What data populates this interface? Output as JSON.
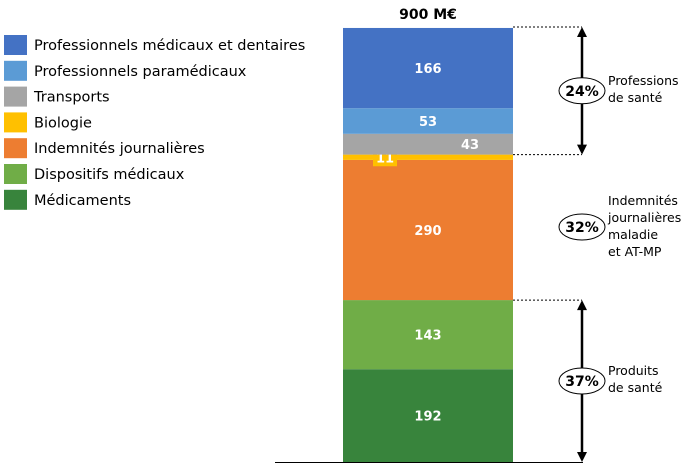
{
  "chart_data": {
    "type": "bar",
    "stacked": true,
    "title": "900 M€",
    "total": 900,
    "unit": "M€",
    "series": [
      {
        "name": "Médicaments",
        "value": 192,
        "color": "#38843C"
      },
      {
        "name": "Dispositifs médicaux",
        "value": 143,
        "color": "#70AD47"
      },
      {
        "name": "Indemnités journalières",
        "value": 290,
        "color": "#ED7D31"
      },
      {
        "name": "Biologie",
        "value": 11,
        "color": "#FFC000"
      },
      {
        "name": "Transports",
        "value": 43,
        "color": "#A5A5A5"
      },
      {
        "name": "Professionnels paramédicaux",
        "value": 53,
        "color": "#5B9BD5"
      },
      {
        "name": "Professionnels médicaux et dentaires",
        "value": 166,
        "color": "#4472C4"
      }
    ],
    "legend_order": [
      6,
      5,
      4,
      3,
      2,
      1,
      0
    ],
    "legend_placement": "left",
    "groups": [
      {
        "pct": "24%",
        "label": [
          "Professions",
          "de santé"
        ],
        "from": 636,
        "to": 900,
        "arrow": true
      },
      {
        "pct": "32%",
        "label": [
          "Indemnités",
          "journalières",
          "maladie",
          "et AT-MP"
        ],
        "from": 335,
        "to": 636,
        "arrow": false
      },
      {
        "pct": "37%",
        "label": [
          "Produits",
          "de santé"
        ],
        "from": 0,
        "to": 335,
        "arrow": true
      }
    ]
  }
}
